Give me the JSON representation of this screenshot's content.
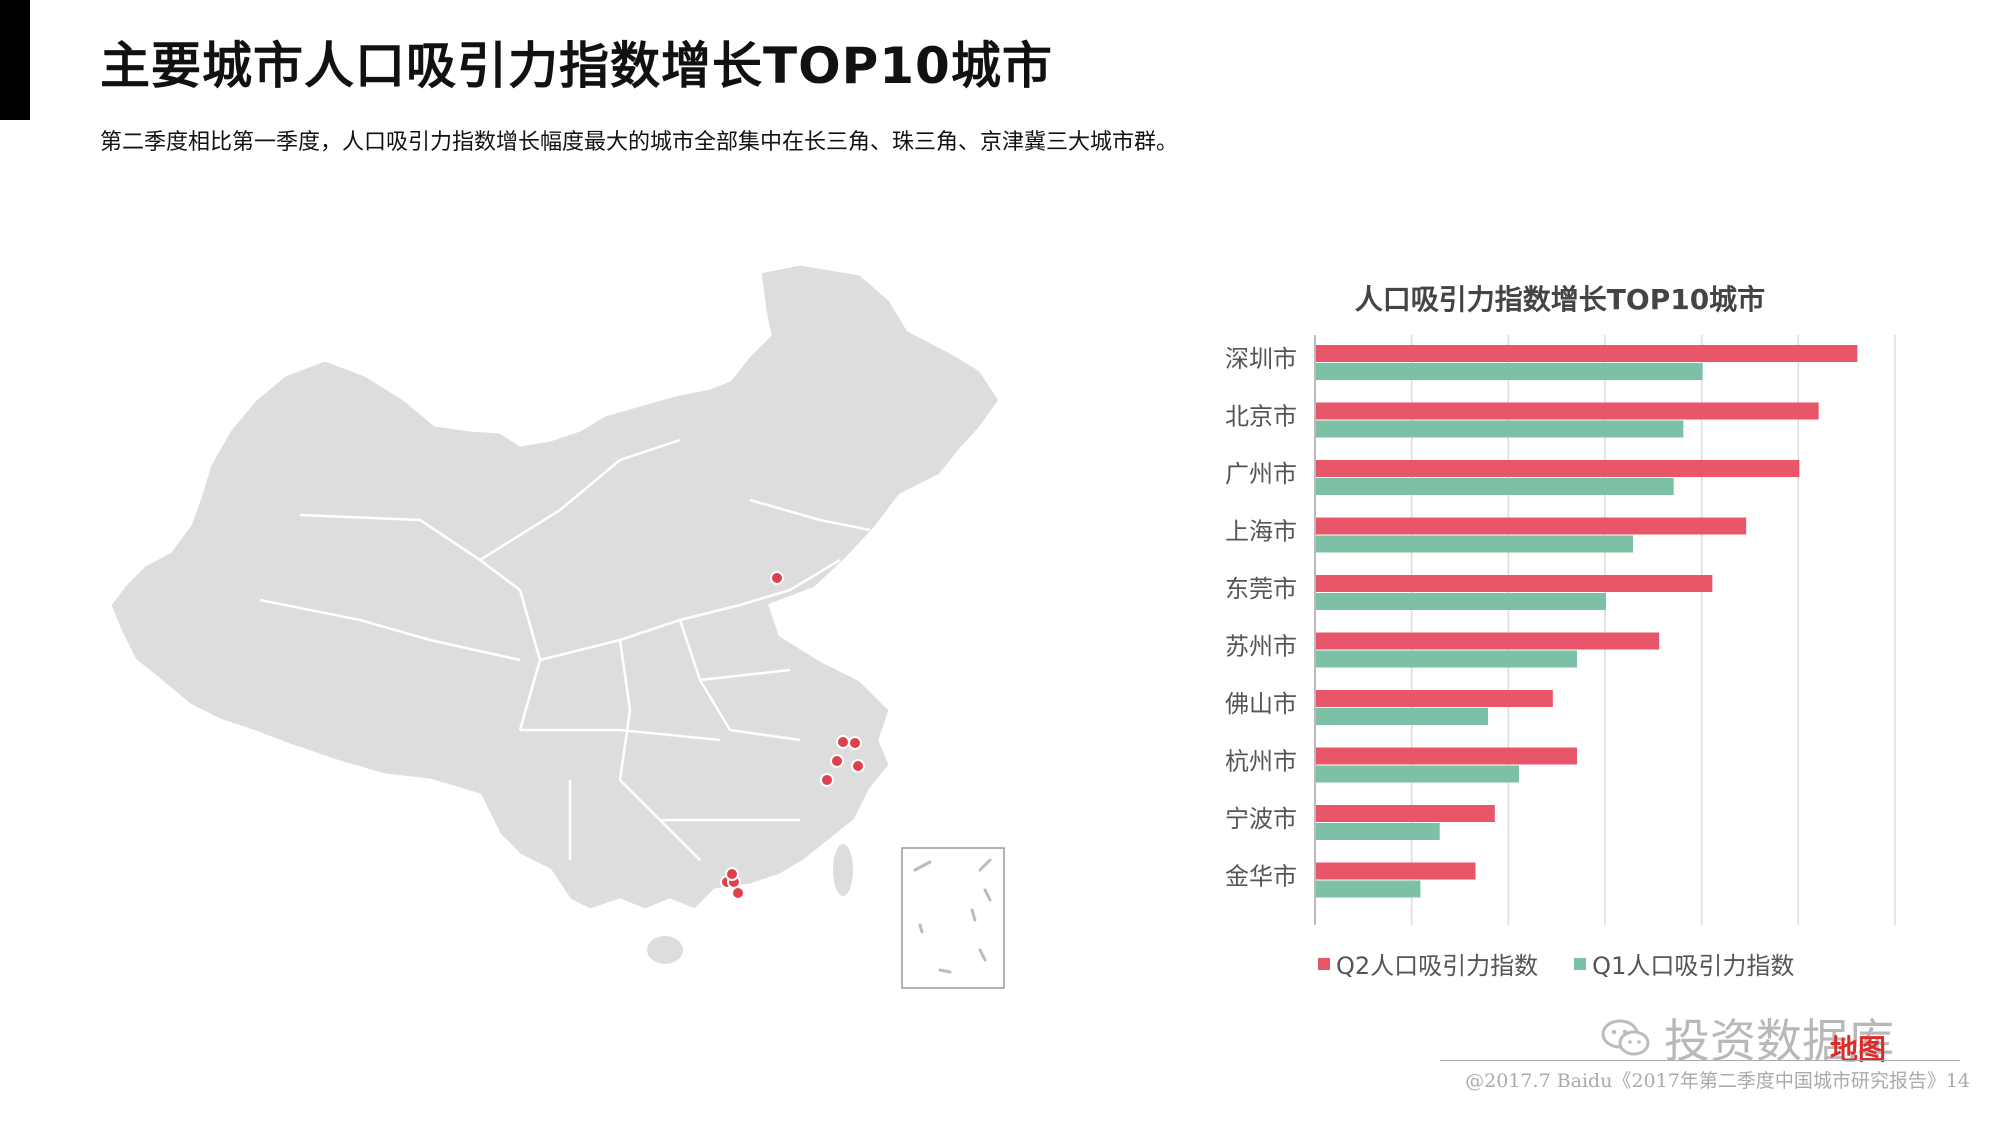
{
  "page": {
    "title": "主要城市人口吸引力指数增长TOP10城市",
    "subtitle": "第二季度相比第一季度，人口吸引力指数增长幅度最大的城市全部集中在长三角、珠三角、京津冀三大城市群。",
    "watermark": "投资数据库",
    "map_brand": "地图",
    "footer": "@2017.7 Baidu《2017年第二季度中国城市研究报告》14"
  },
  "colors": {
    "q2": "#e8566a",
    "q1": "#7cc0a6",
    "map_fill": "#dddddd",
    "map_stroke": "#ffffff",
    "dot": "#e0404e"
  },
  "chart_data": {
    "type": "bar",
    "orientation": "horizontal",
    "title": "人口吸引力指数增长TOP10城市",
    "categories": [
      "深圳市",
      "北京市",
      "广州市",
      "上海市",
      "东莞市",
      "苏州市",
      "佛山市",
      "杭州市",
      "宁波市",
      "金华市"
    ],
    "series": [
      {
        "name": "Q2人口吸引力指数",
        "values": [
          56,
          52,
          50,
          44.5,
          41,
          35.5,
          24.5,
          27,
          18.5,
          16.5
        ]
      },
      {
        "name": "Q1人口吸引力指数",
        "values": [
          40,
          38,
          37,
          32.8,
          30,
          27,
          17.8,
          21,
          12.8,
          10.8
        ]
      }
    ],
    "xlim": [
      0,
      60
    ],
    "grid": true,
    "legend": "bottom"
  },
  "map": {
    "markers": [
      "北京",
      "苏州",
      "上海",
      "杭州",
      "宁波",
      "金华",
      "广州",
      "佛山",
      "深圳",
      "东莞"
    ]
  }
}
